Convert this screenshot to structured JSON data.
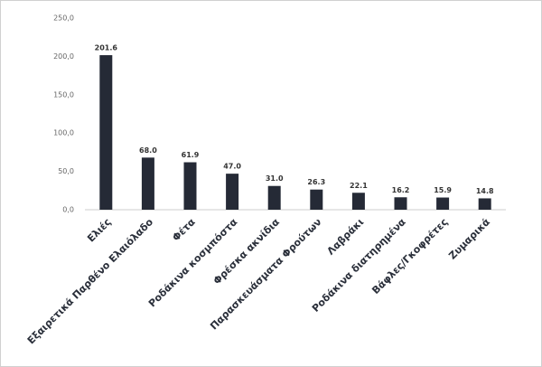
{
  "chart_data": {
    "type": "bar",
    "categories": [
      "Ελιές",
      "Εξαιρετικά Παρθένο Ελαιόλαδο",
      "Φέτα",
      "Ροδάκινα κοσμπόστα",
      "Φρέσκα ακνίδια",
      "Παρασκευάσματα Φρούτων",
      "Λαβράκι",
      "Ροδάκινα διατηρημένα",
      "Βάφλες/Γκοφρέτες",
      "Ζυμαρικά"
    ],
    "values": [
      201.6,
      68.0,
      61.9,
      47.0,
      31.0,
      26.3,
      22.1,
      16.2,
      15.9,
      14.8
    ],
    "value_labels": [
      "201.6",
      "68.0",
      "61.9",
      "47.0",
      "31.0",
      "26.3",
      "22.1",
      "16.2",
      "15.9",
      "14.8"
    ],
    "color": "#252a36",
    "ylim": [
      0,
      250
    ],
    "yticks": [
      {
        "value": 0,
        "label": "0,0"
      },
      {
        "value": 50,
        "label": "50,0"
      },
      {
        "value": 100,
        "label": "100,0"
      },
      {
        "value": 150,
        "label": "150,0"
      },
      {
        "value": 200,
        "label": "200,0"
      },
      {
        "value": 250,
        "label": "250,0"
      }
    ],
    "grid": false
  }
}
